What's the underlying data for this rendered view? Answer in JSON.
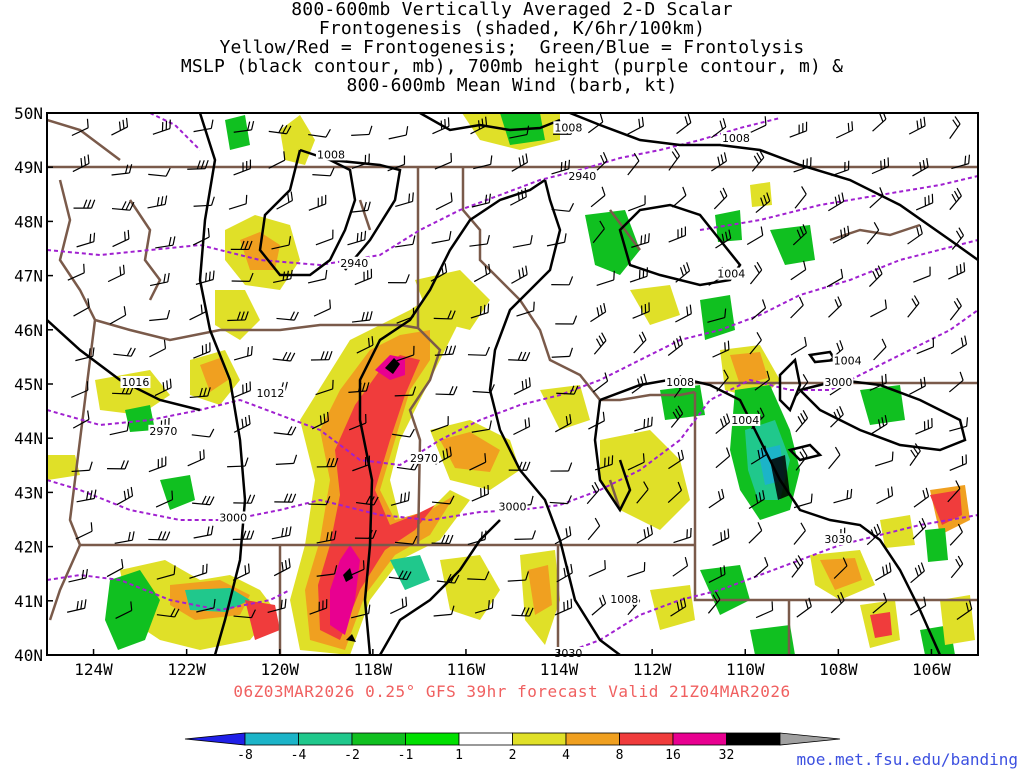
{
  "title_lines": [
    "800-600mb Vertically Averaged 2-D Scalar",
    "Frontogenesis (shaded, K/6hr/100km)",
    "Yellow/Red = Frontogenesis;  Green/Blue = Frontolysis",
    "MSLP (black contour, mb), 700mb height (purple contour, m) &",
    "800-600mb Mean Wind (barb, kt)"
  ],
  "map": {
    "lat_labels": [
      "50N",
      "49N",
      "48N",
      "47N",
      "46N",
      "45N",
      "44N",
      "43N",
      "42N",
      "41N",
      "40N"
    ],
    "lon_labels": [
      "124W",
      "122W",
      "120W",
      "118W",
      "116W",
      "114W",
      "112W",
      "110W",
      "108W",
      "106W"
    ],
    "lat_range": [
      40,
      50
    ],
    "lon_range": [
      -125,
      -105
    ],
    "mslp_labels": [
      {
        "text": "1008",
        "lon": -113.8,
        "lat": 49.7
      },
      {
        "text": "1008",
        "lon": -118.9,
        "lat": 49.2
      },
      {
        "text": "1008",
        "lon": -110.2,
        "lat": 49.5
      },
      {
        "text": "1004",
        "lon": -110.3,
        "lat": 47.0
      },
      {
        "text": "1004",
        "lon": -107.8,
        "lat": 45.4
      },
      {
        "text": "1004",
        "lon": -110.0,
        "lat": 44.3
      },
      {
        "text": "1008",
        "lon": -111.4,
        "lat": 45.0
      },
      {
        "text": "1016",
        "lon": -123.1,
        "lat": 45.0
      },
      {
        "text": "1012",
        "lon": -120.2,
        "lat": 44.8
      },
      {
        "text": "1008",
        "lon": -112.6,
        "lat": 41.0
      }
    ],
    "height_labels": [
      {
        "text": "2940",
        "lon": -113.5,
        "lat": 48.8
      },
      {
        "text": "2940",
        "lon": -118.4,
        "lat": 47.2
      },
      {
        "text": "2970",
        "lon": -122.5,
        "lat": 44.1
      },
      {
        "text": "2970",
        "lon": -116.9,
        "lat": 43.6
      },
      {
        "text": "3000",
        "lon": -121.0,
        "lat": 42.5
      },
      {
        "text": "3000",
        "lon": -115.0,
        "lat": 42.7
      },
      {
        "text": "3000",
        "lon": -108.0,
        "lat": 45.0
      },
      {
        "text": "3030",
        "lon": -108.0,
        "lat": 42.1
      },
      {
        "text": "3030",
        "lon": -113.8,
        "lat": 40.0
      }
    ]
  },
  "footer": "06Z03MAR2026 0.25° GFS 39hr forecast Valid 21Z04MAR2026",
  "colorbar": {
    "labels": [
      "-8",
      "-4",
      "-2",
      "-1",
      "1",
      "2",
      "4",
      "8",
      "16",
      "32"
    ],
    "colors": [
      "#2020e8",
      "#1cb4c8",
      "#20c88c",
      "#10c020",
      "#00e000",
      "#ffffff",
      "#e0e028",
      "#f0a020",
      "#f03c3c",
      "#e80090",
      "#000000",
      "#a0a0a0"
    ]
  },
  "credit": "moe.met.fsu.edu/banding"
}
